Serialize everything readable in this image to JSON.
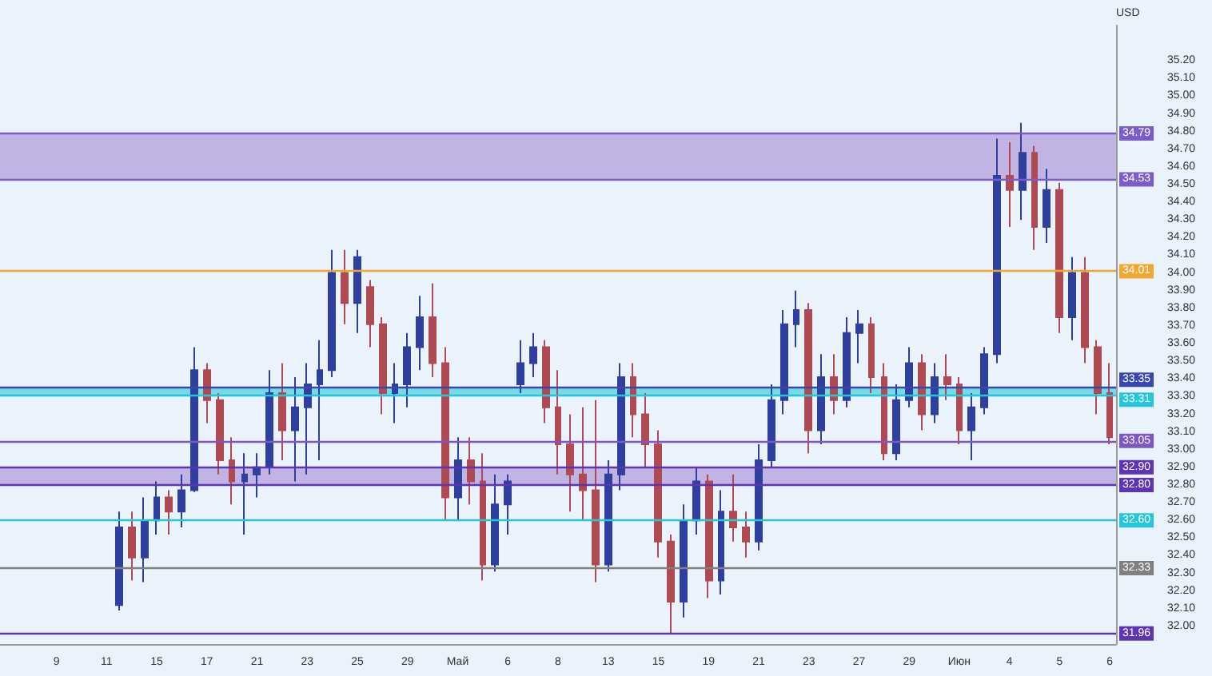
{
  "chart_data": {
    "type": "candlestick",
    "ylabel": "USD",
    "categories": [
      null,
      null,
      null,
      null,
      "9",
      null,
      null,
      null,
      "11",
      null,
      null,
      null,
      "15",
      null,
      null,
      null,
      "17",
      null,
      null,
      null,
      "21",
      null,
      null,
      null,
      "23",
      null,
      null,
      null,
      "25",
      null,
      null,
      null,
      "29",
      null,
      null,
      null,
      "Май",
      null,
      null,
      null,
      "6",
      null,
      null,
      null,
      "8",
      null,
      null,
      null,
      "13",
      null,
      null,
      null,
      "15",
      null,
      null,
      null,
      "19",
      null,
      null,
      null,
      "21",
      null,
      null,
      null,
      "23",
      null,
      null,
      null,
      "27",
      null,
      null,
      null,
      "29",
      null,
      null,
      null,
      "Июн",
      null,
      null,
      null,
      "4",
      null,
      null,
      null,
      "5",
      null,
      null,
      null,
      "6"
    ],
    "ohlc": [
      null,
      null,
      null,
      null,
      null,
      null,
      null,
      null,
      null,
      [
        32.12,
        32.65,
        32.09,
        32.56
      ],
      [
        32.56,
        32.65,
        32.26,
        32.39
      ],
      [
        32.39,
        32.73,
        32.25,
        32.6
      ],
      [
        32.6,
        32.82,
        32.52,
        32.73
      ],
      [
        32.73,
        32.77,
        32.52,
        32.65
      ],
      [
        32.65,
        32.86,
        32.56,
        32.77
      ],
      [
        32.77,
        33.58,
        32.76,
        33.45
      ],
      [
        33.45,
        33.49,
        33.15,
        33.28
      ],
      [
        33.28,
        33.32,
        32.86,
        32.94
      ],
      [
        32.94,
        33.07,
        32.69,
        32.82
      ],
      [
        32.82,
        32.98,
        32.52,
        32.86
      ],
      [
        32.86,
        32.98,
        32.73,
        32.9
      ],
      [
        32.9,
        33.45,
        32.86,
        33.32
      ],
      [
        33.32,
        33.49,
        32.94,
        33.11
      ],
      [
        33.11,
        33.41,
        32.82,
        33.24
      ],
      [
        33.24,
        33.49,
        32.86,
        33.37
      ],
      [
        33.37,
        33.62,
        32.94,
        33.45
      ],
      [
        33.45,
        34.13,
        33.41,
        34.0
      ],
      [
        34.0,
        34.13,
        33.71,
        33.83
      ],
      [
        33.83,
        34.13,
        33.66,
        34.09
      ],
      [
        33.92,
        33.96,
        33.58,
        33.71
      ],
      [
        33.71,
        33.75,
        33.2,
        33.32
      ],
      [
        33.32,
        33.49,
        33.15,
        33.37
      ],
      [
        33.37,
        33.66,
        33.24,
        33.58
      ],
      [
        33.58,
        33.87,
        33.45,
        33.75
      ],
      [
        33.75,
        33.94,
        33.41,
        33.49
      ],
      [
        33.49,
        33.58,
        32.6,
        32.73
      ],
      [
        32.73,
        33.07,
        32.6,
        32.94
      ],
      [
        32.94,
        33.07,
        32.69,
        32.82
      ],
      [
        32.82,
        32.98,
        32.26,
        32.35
      ],
      [
        32.35,
        32.86,
        32.31,
        32.69
      ],
      [
        32.69,
        32.86,
        32.52,
        32.82
      ],
      [
        33.37,
        33.62,
        33.32,
        33.49
      ],
      [
        33.49,
        33.66,
        33.41,
        33.58
      ],
      [
        33.58,
        33.62,
        33.15,
        33.24
      ],
      [
        33.24,
        33.45,
        32.86,
        33.03
      ],
      [
        33.03,
        33.2,
        32.65,
        32.86
      ],
      [
        32.86,
        33.24,
        32.6,
        32.77
      ],
      [
        32.77,
        33.28,
        32.25,
        32.35
      ],
      [
        32.35,
        32.94,
        32.31,
        32.86
      ],
      [
        32.86,
        33.49,
        32.77,
        33.41
      ],
      [
        33.41,
        33.49,
        33.07,
        33.2
      ],
      [
        33.2,
        33.32,
        32.9,
        33.03
      ],
      [
        33.03,
        33.11,
        32.39,
        32.48
      ],
      [
        32.48,
        32.52,
        31.96,
        32.14
      ],
      [
        32.14,
        32.69,
        32.05,
        32.6
      ],
      [
        32.6,
        32.9,
        32.52,
        32.82
      ],
      [
        32.82,
        32.86,
        32.16,
        32.26
      ],
      [
        32.26,
        32.77,
        32.18,
        32.65
      ],
      [
        32.65,
        32.86,
        32.48,
        32.56
      ],
      [
        32.56,
        32.65,
        32.39,
        32.48
      ],
      [
        32.48,
        33.03,
        32.43,
        32.94
      ],
      [
        32.94,
        33.37,
        32.9,
        33.28
      ],
      [
        33.28,
        33.79,
        33.2,
        33.71
      ],
      [
        33.71,
        33.9,
        33.58,
        33.79
      ],
      [
        33.79,
        33.83,
        32.98,
        33.11
      ],
      [
        33.11,
        33.54,
        33.03,
        33.41
      ],
      [
        33.41,
        33.54,
        33.2,
        33.28
      ],
      [
        33.28,
        33.75,
        33.24,
        33.66
      ],
      [
        33.66,
        33.79,
        33.49,
        33.71
      ],
      [
        33.71,
        33.75,
        33.32,
        33.41
      ],
      [
        33.41,
        33.49,
        32.94,
        32.98
      ],
      [
        32.98,
        33.37,
        32.94,
        33.28
      ],
      [
        33.28,
        33.58,
        33.24,
        33.49
      ],
      [
        33.49,
        33.54,
        33.11,
        33.2
      ],
      [
        33.2,
        33.49,
        33.15,
        33.41
      ],
      [
        33.41,
        33.54,
        33.28,
        33.37
      ],
      [
        33.37,
        33.41,
        33.03,
        33.11
      ],
      [
        33.11,
        33.32,
        32.94,
        33.24
      ],
      [
        33.24,
        33.58,
        33.2,
        33.54
      ],
      [
        33.54,
        34.76,
        33.49,
        34.55
      ],
      [
        34.55,
        34.74,
        34.26,
        34.47
      ],
      [
        34.47,
        34.85,
        34.3,
        34.68
      ],
      [
        34.68,
        34.72,
        34.13,
        34.26
      ],
      [
        34.26,
        34.59,
        34.17,
        34.47
      ],
      [
        34.47,
        34.51,
        33.66,
        33.75
      ],
      [
        33.75,
        34.09,
        33.62,
        34.0
      ],
      [
        34.0,
        34.09,
        33.49,
        33.58
      ],
      [
        33.58,
        33.62,
        33.2,
        33.32
      ],
      [
        33.32,
        33.49,
        33.03,
        33.07
      ]
    ],
    "colors": [
      null,
      null,
      null,
      null,
      null,
      null,
      null,
      null,
      null,
      "#2e3f9e",
      "#b04a52",
      "#2e3f9e",
      "#2e3f9e",
      "#b04a52",
      "#2e3f9e",
      "#2e3f9e",
      "#b04a52",
      "#b04a52",
      "#b04a52",
      "#2e3f9e",
      "#2e3f9e",
      "#2e3f9e",
      "#b04a52",
      "#2e3f9e",
      "#2e3f9e",
      "#2e3f9e",
      "#2e3f9e",
      "#b04a52",
      "#2e3f9e",
      "#b04a52",
      "#b04a52",
      "#2e3f9e",
      "#2e3f9e",
      "#2e3f9e",
      "#b04a52",
      "#b04a52",
      "#2e3f9e",
      "#b04a52",
      "#b04a52",
      "#2e3f9e",
      "#2e3f9e",
      "#2e3f9e",
      "#2e3f9e",
      "#b04a52",
      "#b04a52",
      "#b04a52",
      "#b04a52",
      "#b04a52",
      "#2e3f9e",
      "#2e3f9e",
      "#b04a52",
      "#b04a52",
      "#b04a52",
      "#b04a52",
      "#2e3f9e",
      "#2e3f9e",
      "#b04a52",
      "#2e3f9e",
      "#b04a52",
      "#b04a52",
      "#2e3f9e",
      "#2e3f9e",
      "#2e3f9e",
      "#2e3f9e",
      "#b04a52",
      "#2e3f9e",
      "#b04a52",
      "#2e3f9e",
      "#2e3f9e",
      "#b04a52",
      "#b04a52",
      "#2e3f9e",
      "#2e3f9e",
      "#b04a52",
      "#2e3f9e",
      "#b04a52",
      "#b04a52",
      "#2e3f9e",
      "#2e3f9e",
      "#2e3f9e",
      "#b04a52",
      "#2e3f9e",
      "#b04a52",
      "#2e3f9e",
      "#b04a52",
      "#2e3f9e",
      "#b04a52",
      "#b04a52",
      "#b04a52"
    ],
    "ylim": [
      31.9,
      35.4
    ],
    "yticks": [
      {
        "value": 32.0,
        "label": "32.00"
      },
      {
        "value": 32.1,
        "label": "32.10"
      },
      {
        "value": 32.2,
        "label": "32.20"
      },
      {
        "value": 32.3,
        "label": "32.30"
      },
      {
        "value": 32.4,
        "label": "32.40"
      },
      {
        "value": 32.5,
        "label": "32.50"
      },
      {
        "value": 32.6,
        "label": "32.60"
      },
      {
        "value": 32.7,
        "label": "32.70"
      },
      {
        "value": 32.8,
        "label": "32.80"
      },
      {
        "value": 32.9,
        "label": "32.90"
      },
      {
        "value": 33.0,
        "label": "33.00"
      },
      {
        "value": 33.1,
        "label": "33.10"
      },
      {
        "value": 33.2,
        "label": "33.20"
      },
      {
        "value": 33.3,
        "label": "33.30"
      },
      {
        "value": 33.4,
        "label": "33.40"
      },
      {
        "value": 33.5,
        "label": "33.50"
      },
      {
        "value": 33.6,
        "label": "33.60"
      },
      {
        "value": 33.7,
        "label": "33.70"
      },
      {
        "value": 33.8,
        "label": "33.80"
      },
      {
        "value": 33.9,
        "label": "33.90"
      },
      {
        "value": 34.0,
        "label": "34.00"
      },
      {
        "value": 34.1,
        "label": "34.10"
      },
      {
        "value": 34.2,
        "label": "34.20"
      },
      {
        "value": 34.3,
        "label": "34.30"
      },
      {
        "value": 34.4,
        "label": "34.40"
      },
      {
        "value": 34.5,
        "label": "34.50"
      },
      {
        "value": 34.6,
        "label": "34.60"
      },
      {
        "value": 34.7,
        "label": "34.70"
      },
      {
        "value": 34.8,
        "label": "34.80"
      },
      {
        "value": 34.9,
        "label": "34.90"
      },
      {
        "value": 35.0,
        "label": "35.00"
      },
      {
        "value": 35.1,
        "label": "35.10"
      },
      {
        "value": 35.2,
        "label": "35.20"
      }
    ],
    "ref_lines": [
      {
        "axis": "y",
        "value": 34.79,
        "label": "34.79",
        "color": "#7b5cc8"
      },
      {
        "axis": "y",
        "value": 34.53,
        "label": "34.53",
        "color": "#7b5cc8"
      },
      {
        "axis": "y",
        "value": 34.01,
        "label": "34.01",
        "color": "#f0a830"
      },
      {
        "axis": "y",
        "value": 33.35,
        "label": "33.35",
        "color": "#3949ab"
      },
      {
        "axis": "y",
        "value": 33.31,
        "label": "33.31",
        "color": "#26c6da"
      },
      {
        "axis": "y",
        "value": 33.05,
        "label": "33.05",
        "color": "#7e57c2"
      },
      {
        "axis": "y",
        "value": 32.9,
        "label": "32.90",
        "color": "#5e35b1"
      },
      {
        "axis": "y",
        "value": 32.8,
        "label": "32.80",
        "color": "#5e35b1"
      },
      {
        "axis": "y",
        "value": 32.6,
        "label": "32.60",
        "color": "#26c6da"
      },
      {
        "axis": "y",
        "value": 32.33,
        "label": "32.33",
        "color": "#808080"
      },
      {
        "axis": "y",
        "value": 31.96,
        "label": "31.96",
        "color": "#5e35b1"
      }
    ],
    "bands": [
      {
        "axis": "y",
        "from": 34.53,
        "to": 34.79,
        "color": "#b39ddb"
      },
      {
        "axis": "y",
        "from": 33.31,
        "to": 33.35,
        "color": "#4dd0e1"
      },
      {
        "axis": "y",
        "from": 32.8,
        "to": 32.9,
        "color": "#b39ddb"
      }
    ]
  }
}
